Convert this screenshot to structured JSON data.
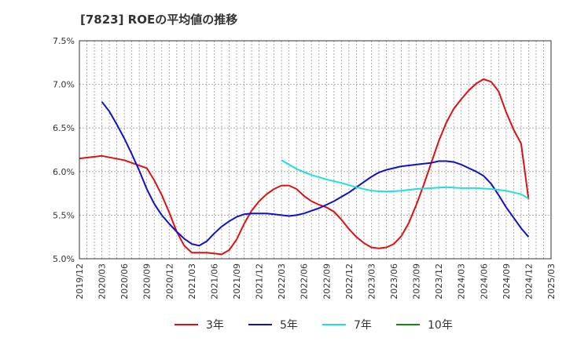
{
  "chart_data": {
    "type": "line",
    "title": "[7823]  ROEの平均値の推移",
    "xlabel": "",
    "ylabel": "",
    "ylim": [
      5.0,
      7.5
    ],
    "y_ticks": [
      "5.0%",
      "5.5%",
      "6.0%",
      "6.5%",
      "7.0%",
      "7.5%"
    ],
    "y_tick_values": [
      5.0,
      5.5,
      6.0,
      6.5,
      7.0,
      7.5
    ],
    "x_ticks": [
      "2019/12",
      "2020/03",
      "2020/06",
      "2020/09",
      "2020/12",
      "2021/03",
      "2021/06",
      "2021/09",
      "2021/12",
      "2022/03",
      "2022/06",
      "2022/09",
      "2022/12",
      "2023/03",
      "2023/06",
      "2023/09",
      "2023/12",
      "2024/03",
      "2024/06",
      "2024/09",
      "2024/12",
      "2025/03"
    ],
    "x_range_months": [
      0,
      63
    ],
    "grid": true,
    "legend_position": "bottom",
    "series": [
      {
        "name": "3年",
        "color": "#dd1111",
        "x_months": [
          0,
          3,
          6,
          9,
          10,
          11,
          12,
          13,
          14,
          15,
          16,
          17,
          18,
          19,
          20,
          21,
          22,
          23,
          24,
          25,
          26,
          27,
          28,
          29,
          30,
          31,
          32,
          33,
          34,
          35,
          36,
          37,
          38,
          39,
          40,
          41,
          42,
          43,
          44,
          45,
          46,
          47,
          48,
          49,
          50,
          51,
          52,
          53,
          54,
          55,
          56,
          57,
          58,
          59,
          60
        ],
        "values": [
          6.15,
          6.18,
          6.13,
          6.04,
          5.9,
          5.73,
          5.53,
          5.31,
          5.15,
          5.07,
          5.07,
          5.07,
          5.06,
          5.05,
          5.1,
          5.22,
          5.4,
          5.55,
          5.66,
          5.74,
          5.8,
          5.84,
          5.84,
          5.8,
          5.72,
          5.66,
          5.62,
          5.59,
          5.54,
          5.45,
          5.34,
          5.25,
          5.18,
          5.13,
          5.12,
          5.13,
          5.17,
          5.26,
          5.41,
          5.62,
          5.85,
          6.1,
          6.35,
          6.56,
          6.72,
          6.83,
          6.93,
          7.01,
          7.06,
          7.03,
          6.92,
          6.68,
          6.48,
          6.32,
          5.68
        ]
      },
      {
        "name": "5年",
        "color": "#1111cc",
        "x_months": [
          3,
          4,
          5,
          6,
          7,
          8,
          9,
          10,
          11,
          12,
          13,
          14,
          15,
          16,
          17,
          18,
          19,
          20,
          21,
          22,
          23,
          24,
          25,
          26,
          27,
          28,
          29,
          30,
          31,
          32,
          33,
          34,
          35,
          36,
          37,
          38,
          39,
          40,
          41,
          42,
          43,
          44,
          45,
          46,
          47,
          48,
          49,
          50,
          51,
          52,
          53,
          54,
          55,
          56,
          57,
          58,
          59,
          60
        ],
        "values": [
          6.8,
          6.69,
          6.54,
          6.38,
          6.2,
          6.01,
          5.8,
          5.63,
          5.5,
          5.4,
          5.31,
          5.23,
          5.17,
          5.15,
          5.2,
          5.29,
          5.37,
          5.43,
          5.48,
          5.51,
          5.52,
          5.52,
          5.52,
          5.51,
          5.5,
          5.49,
          5.5,
          5.52,
          5.55,
          5.58,
          5.62,
          5.66,
          5.71,
          5.76,
          5.82,
          5.88,
          5.94,
          5.99,
          6.02,
          6.04,
          6.06,
          6.07,
          6.08,
          6.09,
          6.1,
          6.12,
          6.12,
          6.11,
          6.08,
          6.04,
          6.0,
          5.95,
          5.86,
          5.73,
          5.59,
          5.47,
          5.35,
          5.25
        ]
      },
      {
        "name": "7年",
        "color": "#22dddd",
        "x_months": [
          27,
          29,
          31,
          33,
          35,
          37,
          39,
          41,
          43,
          45,
          47,
          49,
          51,
          53,
          55,
          57,
          59,
          60
        ],
        "values": [
          6.13,
          6.03,
          5.96,
          5.91,
          5.87,
          5.82,
          5.78,
          5.77,
          5.78,
          5.8,
          5.81,
          5.82,
          5.81,
          5.81,
          5.8,
          5.78,
          5.74,
          5.69
        ]
      },
      {
        "name": "10年",
        "color": "#118811",
        "x_months": [],
        "values": []
      }
    ]
  }
}
